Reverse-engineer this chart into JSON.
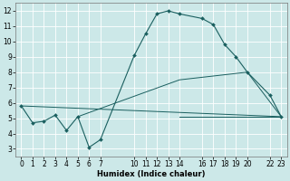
{
  "background_color": "#cce8e8",
  "grid_color": "#ffffff",
  "line_color": "#1a5f5f",
  "xlabel": "Humidex (Indice chaleur)",
  "xlim": [
    -0.5,
    23.5
  ],
  "ylim": [
    2.5,
    12.5
  ],
  "yticks": [
    3,
    4,
    5,
    6,
    7,
    8,
    9,
    10,
    11,
    12
  ],
  "xticks": [
    0,
    1,
    2,
    3,
    4,
    5,
    6,
    7,
    10,
    11,
    12,
    13,
    14,
    16,
    17,
    18,
    19,
    20,
    22,
    23
  ],
  "line1_x": [
    0,
    1,
    2,
    3,
    4,
    5,
    6,
    7,
    10,
    11,
    12,
    13,
    14,
    16,
    17,
    18,
    19,
    20,
    22,
    23
  ],
  "line1_y": [
    5.8,
    4.7,
    4.8,
    5.2,
    4.2,
    5.1,
    3.1,
    3.6,
    9.1,
    10.5,
    11.8,
    12.0,
    11.8,
    11.5,
    11.1,
    9.8,
    9.0,
    8.0,
    6.5,
    5.1
  ],
  "line2_x": [
    0,
    23
  ],
  "line2_y": [
    5.8,
    5.1
  ],
  "line3_x": [
    5,
    14,
    20,
    23
  ],
  "line3_y": [
    5.1,
    7.5,
    8.0,
    5.1
  ],
  "line4_x": [
    14,
    23
  ],
  "line4_y": [
    5.1,
    5.1
  ],
  "fontsize_label": 6,
  "fontsize_tick": 5.5
}
